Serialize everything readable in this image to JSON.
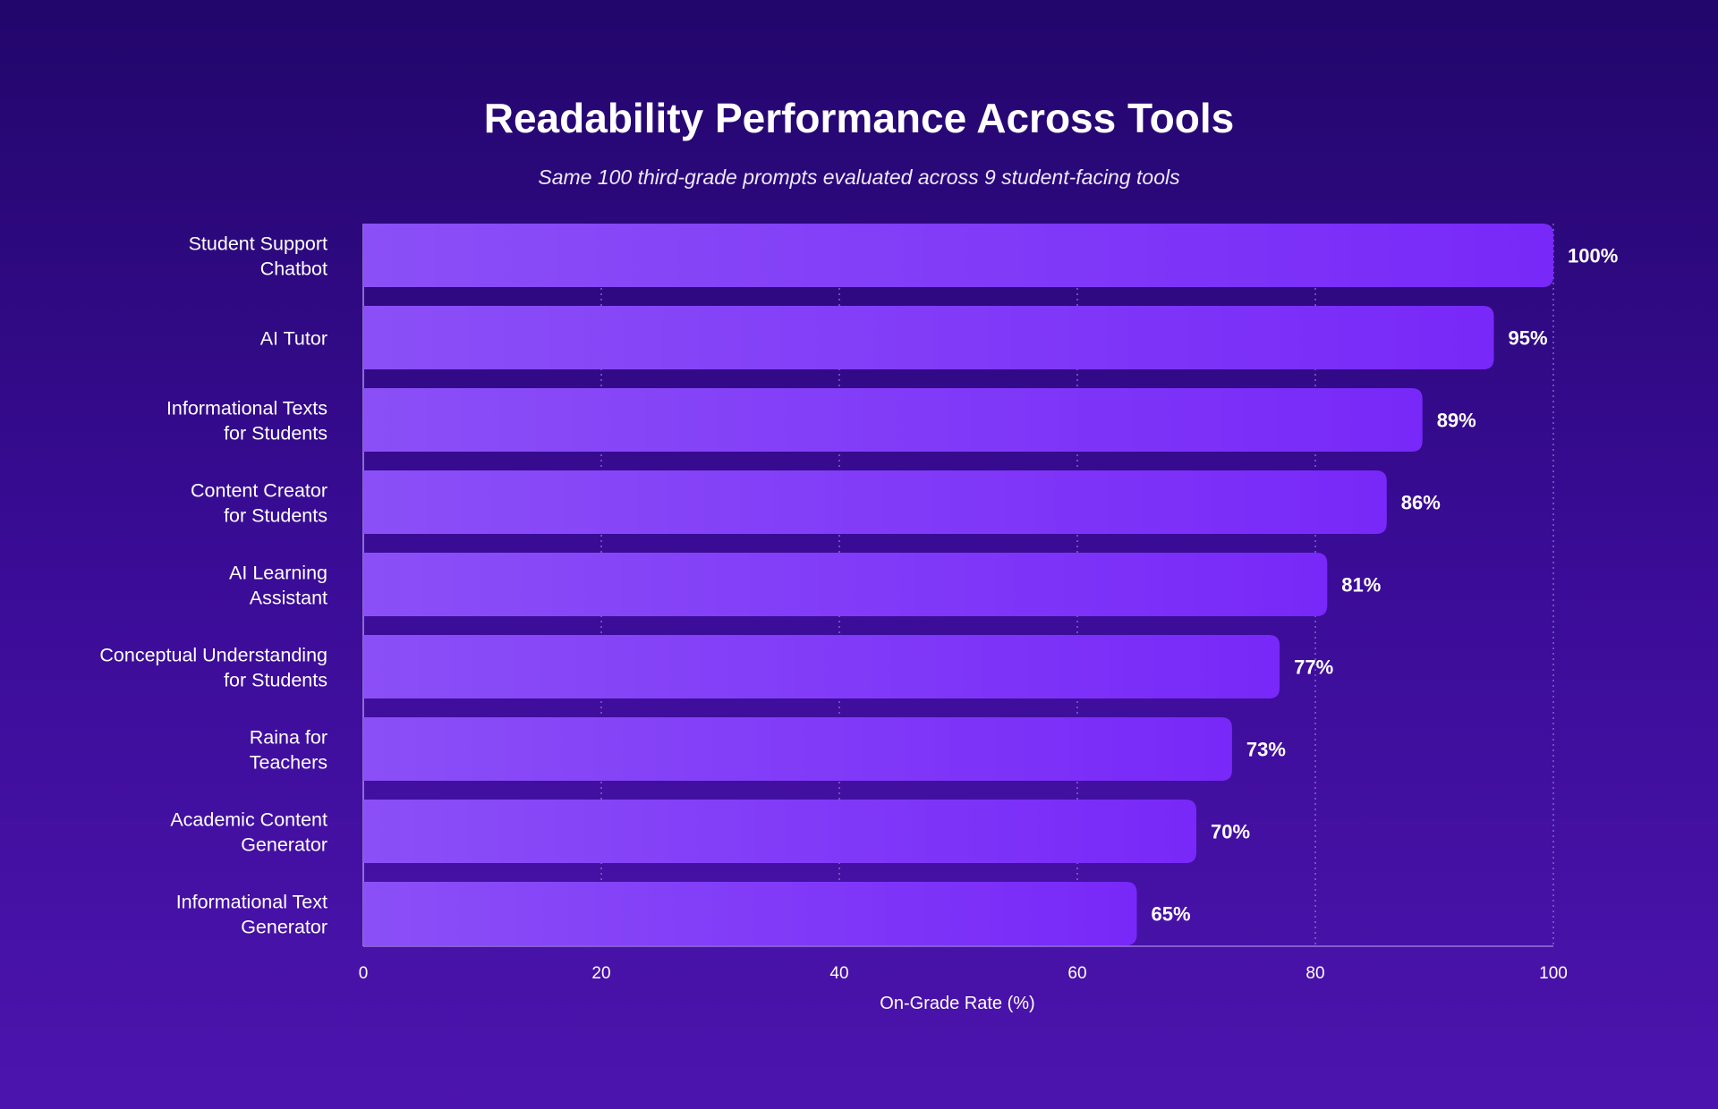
{
  "chart_data": {
    "type": "bar",
    "orientation": "horizontal",
    "title": "Readability Performance Across Tools",
    "subtitle": "Same 100 third-grade prompts evaluated across 9 student-facing tools",
    "xlabel": "On-Grade Rate (%)",
    "ylabel": "",
    "xlim": [
      0,
      100
    ],
    "xticks": [
      "0",
      "20",
      "40",
      "60",
      "80",
      "100"
    ],
    "grid": "vertical-dotted",
    "categories": [
      [
        "Student Support",
        "Chatbot"
      ],
      [
        "AI Tutor"
      ],
      [
        "Informational Texts",
        "for Students"
      ],
      [
        "Content Creator",
        "for Students"
      ],
      [
        "AI Learning",
        "Assistant"
      ],
      [
        "Conceptual Understanding",
        "for Students"
      ],
      [
        "Raina for",
        "Teachers"
      ],
      [
        "Academic Content",
        "Generator"
      ],
      [
        "Informational Text",
        "Generator"
      ]
    ],
    "values": [
      100,
      95,
      89,
      86,
      81,
      77,
      73,
      70,
      65
    ],
    "value_labels": [
      "100%",
      "95%",
      "89%",
      "86%",
      "81%",
      "77%",
      "73%",
      "70%",
      "65%"
    ],
    "colors": {
      "bar_start": "#8b4ff7",
      "bar_end": "#7828f8",
      "grid": "#8e6fd6",
      "axis": "#a98de6"
    }
  }
}
